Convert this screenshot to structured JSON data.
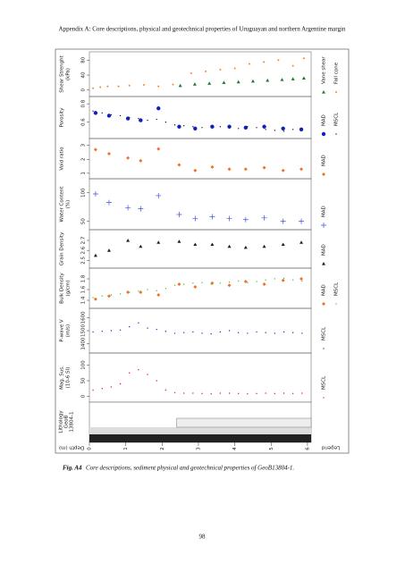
{
  "header": "Appendix A: Core descriptions, physical and geotechnical properties of Uruguayan and northern Argentine margin",
  "figure": {
    "depth_label": "Depth (m)",
    "xlim": [
      0,
      6.1
    ],
    "xticks": [
      0,
      1,
      2,
      3,
      4,
      5,
      6
    ],
    "legend_label": "Legend",
    "lithology_label": [
      "Lithology",
      "GeoB",
      "13804-1"
    ],
    "panels": [
      {
        "label": [
          "Shear Strenght",
          "(kPa)"
        ],
        "ylim": [
          -10,
          95
        ],
        "yticks": [
          0,
          40,
          80
        ],
        "series": [
          {
            "name": "Vane shear",
            "color": "#1e7d32",
            "marker": "triangle",
            "x": [
              2.5,
              2.9,
              3.3,
              3.7,
              4.1,
              4.5,
              4.9,
              5.3,
              5.6,
              5.9
            ],
            "values": [
              12,
              16,
              18,
              20,
              22,
              24,
              26,
              28,
              30,
              32
            ]
          },
          {
            "name": "Fall cone",
            "color": "#f0872a",
            "marker": "dot",
            "x": [
              0.1,
              0.3,
              0.5,
              0.8,
              1.1,
              1.5,
              1.9,
              2.3,
              2.8,
              3.2,
              3.6,
              4.0,
              4.4,
              4.8,
              5.2,
              5.6,
              5.9
            ],
            "values": [
              5,
              8,
              10,
              10,
              12,
              14,
              10,
              15,
              45,
              50,
              55,
              58,
              70,
              75,
              80,
              65,
              85
            ]
          }
        ]
      },
      {
        "label": [
          "Porosity"
        ],
        "ylim": [
          0.45,
          0.85
        ],
        "yticks": [
          0.6,
          0.8
        ],
        "series": [
          {
            "name": "MAD",
            "color": "#1020c0",
            "marker": "circle",
            "x": [
              0.17,
              0.54,
              1.06,
              1.41,
              1.9,
              2.47,
              2.91,
              3.38,
              3.85,
              4.3,
              4.81,
              5.33,
              5.83
            ],
            "values": [
              0.7,
              0.67,
              0.64,
              0.62,
              0.75,
              0.55,
              0.53,
              0.55,
              0.55,
              0.54,
              0.55,
              0.53,
              0.52
            ]
          },
          {
            "name": "MSCL",
            "color": "#222222",
            "marker": "small",
            "x": [
              0.1,
              0.35,
              0.6,
              0.85,
              1.1,
              1.35,
              1.6,
              1.85,
              2.1,
              2.35,
              2.6,
              2.85,
              3.1,
              3.35,
              3.6,
              3.85,
              4.1,
              4.35,
              4.6,
              4.85,
              5.1,
              5.35,
              5.6,
              5.85
            ],
            "values": [
              0.72,
              0.7,
              0.68,
              0.67,
              0.65,
              0.64,
              0.62,
              0.63,
              0.6,
              0.57,
              0.56,
              0.55,
              0.54,
              0.56,
              0.55,
              0.54,
              0.53,
              0.55,
              0.54,
              0.52,
              0.51,
              0.5,
              0.52,
              0.53
            ]
          }
        ]
      },
      {
        "label": [
          "Void ratio"
        ],
        "ylim": [
          0.8,
          3.3
        ],
        "yticks": [
          1,
          2,
          3
        ],
        "series": [
          {
            "name": "MAD",
            "color": "#f0702a",
            "marker": "diamond",
            "x": [
              0.17,
              0.54,
              1.06,
              1.41,
              1.9,
              2.47,
              2.91,
              3.38,
              3.85,
              4.3,
              4.81,
              5.33,
              5.83
            ],
            "values": [
              2.7,
              2.4,
              2.1,
              1.9,
              2.75,
              1.6,
              1.2,
              1.45,
              1.3,
              1.3,
              1.4,
              1.2,
              1.3
            ]
          }
        ]
      },
      {
        "label": [
          "Water Content",
          "(%)"
        ],
        "ylim": [
          40,
          120
        ],
        "yticks": [
          50,
          100
        ],
        "series": [
          {
            "name": "MAD",
            "color": "#4050e0",
            "marker": "plus",
            "x": [
              0.17,
              0.54,
              1.06,
              1.41,
              1.9,
              2.47,
              2.91,
              3.38,
              3.85,
              4.3,
              4.81,
              5.33,
              5.83
            ],
            "values": [
              98,
              83,
              74,
              72,
              95,
              62,
              55,
              58,
              55,
              53,
              56,
              50,
              50
            ]
          }
        ]
      },
      {
        "label": [
          "Grain Density"
        ],
        "ylim": [
          2.45,
          2.78
        ],
        "yticks": [
          2.5,
          2.6,
          2.7
        ],
        "series": [
          {
            "name": "MAD",
            "color": "#222222",
            "marker": "triangle",
            "x": [
              0.17,
              0.54,
              1.06,
              1.41,
              1.9,
              2.47,
              2.91,
              3.38,
              3.85,
              4.3,
              4.81,
              5.33,
              5.83
            ],
            "values": [
              2.55,
              2.6,
              2.7,
              2.64,
              2.68,
              2.69,
              2.66,
              2.66,
              2.64,
              2.63,
              2.64,
              2.66,
              2.68
            ]
          }
        ]
      },
      {
        "label": [
          "Bulk Density",
          "(g/cm)"
        ],
        "ylim": [
          1.3,
          1.95
        ],
        "yticks": [
          1.4,
          1.6,
          1.8
        ],
        "series": [
          {
            "name": "MAD",
            "color": "#f0702a",
            "marker": "diamond",
            "x": [
              0.17,
              0.54,
              1.06,
              1.41,
              1.9,
              2.47,
              2.91,
              3.38,
              3.85,
              4.3,
              4.81,
              5.33,
              5.83
            ],
            "values": [
              1.42,
              1.48,
              1.55,
              1.55,
              1.5,
              1.7,
              1.65,
              1.72,
              1.68,
              1.75,
              1.7,
              1.77,
              1.8
            ]
          },
          {
            "name": "MSCL",
            "color": "#3cc83c",
            "marker": "small",
            "x": [
              0.1,
              0.35,
              0.6,
              0.85,
              1.1,
              1.35,
              1.6,
              1.85,
              2.1,
              2.35,
              2.6,
              2.85,
              3.1,
              3.35,
              3.6,
              3.85,
              4.1,
              4.35,
              4.6,
              4.85,
              5.1,
              5.35,
              5.6,
              5.85
            ],
            "values": [
              1.45,
              1.48,
              1.5,
              1.52,
              1.55,
              1.57,
              1.6,
              1.58,
              1.62,
              1.68,
              1.7,
              1.72,
              1.73,
              1.7,
              1.72,
              1.74,
              1.76,
              1.73,
              1.75,
              1.78,
              1.8,
              1.81,
              1.78,
              1.76
            ]
          }
        ]
      },
      {
        "label": [
          "P-wave V",
          "(m/s)"
        ],
        "ylim": [
          1350,
          1650
        ],
        "yticks": [
          1400,
          1500,
          1600
        ],
        "series": [
          {
            "name": "MSCL",
            "color": "#2030d0",
            "marker": "small",
            "x": [
              0.1,
              0.35,
              0.6,
              0.85,
              1.1,
              1.35,
              1.6,
              1.85,
              2.1,
              2.35,
              2.6,
              2.85,
              3.1,
              3.35,
              3.6,
              3.85,
              4.1,
              4.35,
              4.6,
              4.85,
              5.1,
              5.35,
              5.6,
              5.85
            ],
            "values": [
              1490,
              1495,
              1500,
              1505,
              1530,
              1560,
              1520,
              1510,
              1495,
              1480,
              1485,
              1490,
              1480,
              1475,
              1490,
              1500,
              1485,
              1480,
              1490,
              1485,
              1480,
              1490,
              1485,
              1480
            ]
          }
        ]
      },
      {
        "label": [
          "Mag. Sus.",
          "(10-6 SI)"
        ],
        "ylim": [
          -10,
          130
        ],
        "yticks": [
          0,
          50,
          100
        ],
        "series": [
          {
            "name": "MSCL",
            "color": "#e02020",
            "marker": "small",
            "x": [
              0.1,
              0.35,
              0.6,
              0.85,
              1.1,
              1.35,
              1.6,
              1.85,
              2.1,
              2.35,
              2.6,
              2.85,
              3.1,
              3.35,
              3.6,
              3.85,
              4.1,
              4.35,
              4.6,
              4.85,
              5.1,
              5.35,
              5.6,
              5.85
            ],
            "values": [
              20,
              25,
              30,
              40,
              75,
              85,
              70,
              50,
              20,
              12,
              10,
              10,
              9,
              8,
              10,
              10,
              9,
              8,
              9,
              10,
              9,
              10,
              9,
              10
            ]
          }
        ]
      }
    ]
  },
  "caption_label": "Fig. A4",
  "caption_text": "Core descriptions, sediment physical and geotechnical properties of GeoB13804-1.",
  "page_number": "98"
}
